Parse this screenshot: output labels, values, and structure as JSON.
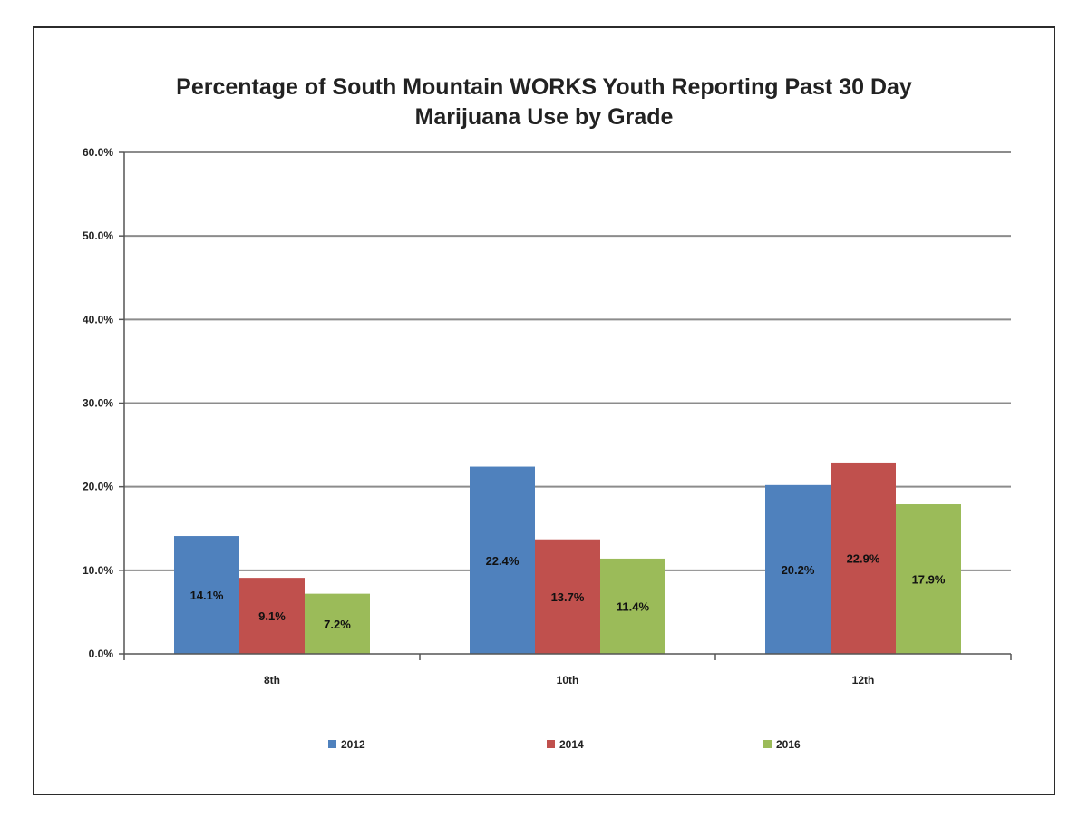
{
  "chart_data": {
    "type": "bar",
    "title_lines": [
      "Percentage of South Mountain  WORKS Youth Reporting Past 30 Day",
      "Marijuana  Use by Grade"
    ],
    "categories": [
      "8th",
      "10th",
      "12th"
    ],
    "series": [
      {
        "name": "2012",
        "color": "#4f81bd",
        "values": [
          14.1,
          22.4,
          20.2
        ],
        "labels": [
          "14.1%",
          "22.4%",
          "20.2%"
        ]
      },
      {
        "name": "2014",
        "color": "#c0504d",
        "values": [
          9.1,
          13.7,
          22.9
        ],
        "labels": [
          "9.1%",
          "13.7%",
          "22.9%"
        ]
      },
      {
        "name": "2016",
        "color": "#9bbb59",
        "values": [
          7.2,
          11.4,
          17.9
        ],
        "labels": [
          "7.2%",
          "11.4%",
          "17.9%"
        ]
      }
    ],
    "ylim": [
      0,
      60
    ],
    "yticks": [
      0,
      10,
      20,
      30,
      40,
      50,
      60
    ],
    "ytick_labels": [
      "0.0%",
      "10.0%",
      "20.0%",
      "30.0%",
      "40.0%",
      "50.0%",
      "60.0%"
    ],
    "xlabel": "",
    "ylabel": "",
    "grid": true,
    "legend_position": "bottom"
  }
}
